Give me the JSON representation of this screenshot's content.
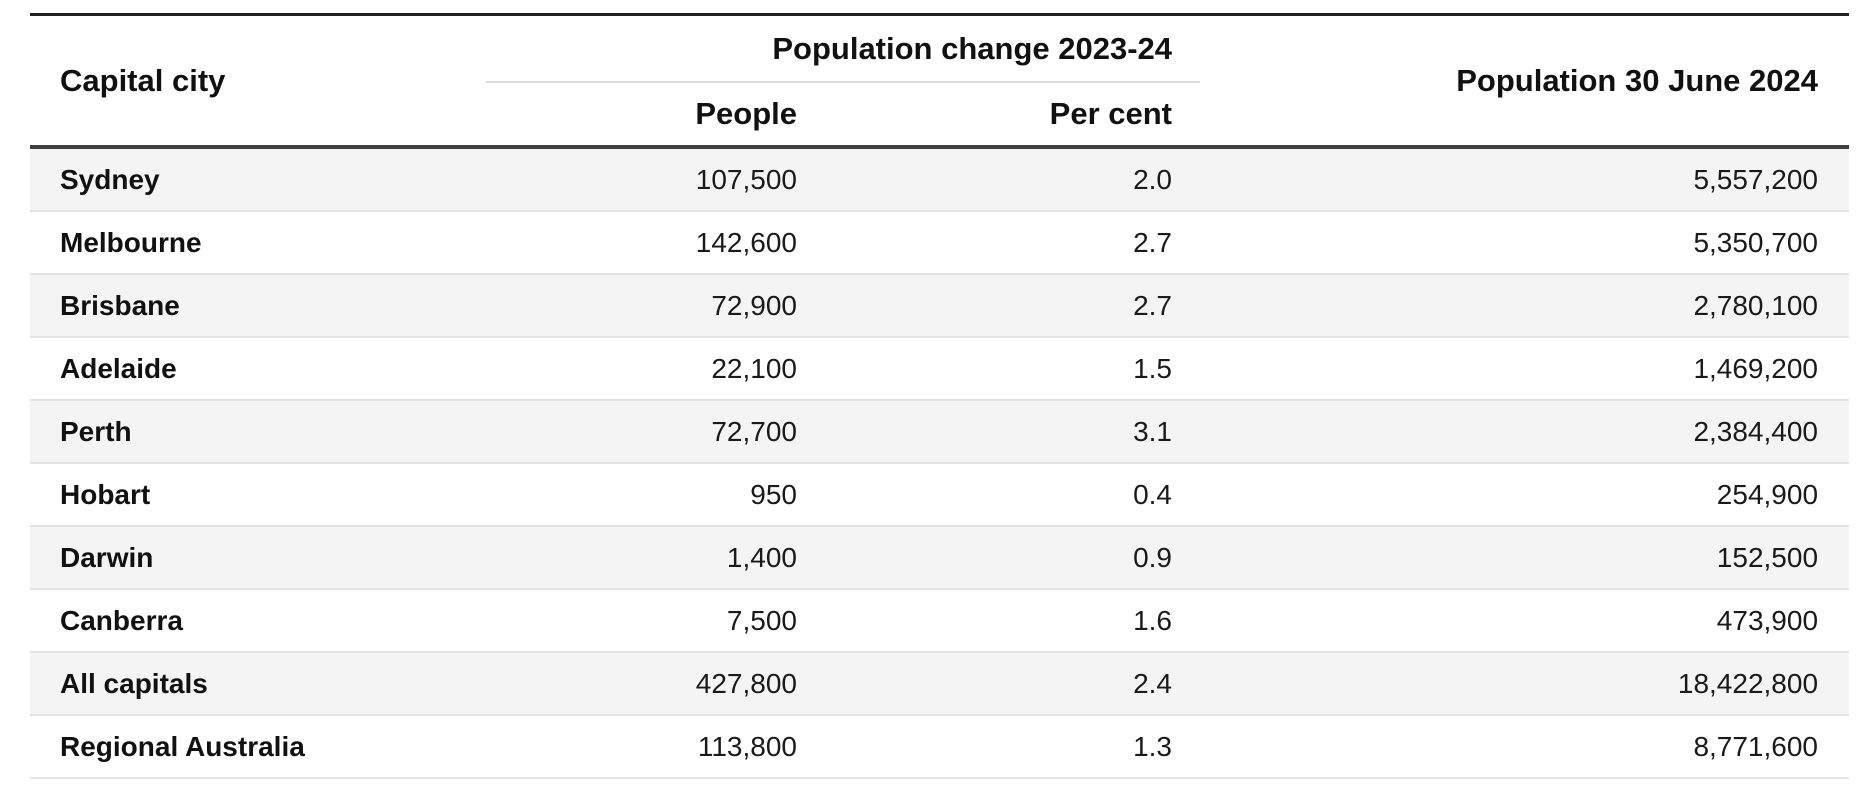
{
  "table": {
    "header": {
      "capital_city": "Capital city",
      "change_group": "Population change 2023-24",
      "people": "People",
      "per_cent": "Per cent",
      "population": "Population 30 June 2024"
    },
    "rows": [
      {
        "city": "Sydney",
        "people": "107,500",
        "per_cent": "2.0",
        "population": "5,557,200"
      },
      {
        "city": "Melbourne",
        "people": "142,600",
        "per_cent": "2.7",
        "population": "5,350,700"
      },
      {
        "city": "Brisbane",
        "people": "72,900",
        "per_cent": "2.7",
        "population": "2,780,100"
      },
      {
        "city": "Adelaide",
        "people": "22,100",
        "per_cent": "1.5",
        "population": "1,469,200"
      },
      {
        "city": "Perth",
        "people": "72,700",
        "per_cent": "3.1",
        "population": "2,384,400"
      },
      {
        "city": "Hobart",
        "people": "950",
        "per_cent": "0.4",
        "population": "254,900"
      },
      {
        "city": "Darwin",
        "people": "1,400",
        "per_cent": "0.9",
        "population": "152,500"
      },
      {
        "city": "Canberra",
        "people": "7,500",
        "per_cent": "1.6",
        "population": "473,900"
      },
      {
        "city": "All capitals",
        "people": "427,800",
        "per_cent": "2.4",
        "population": "18,422,800"
      },
      {
        "city": "Regional Australia",
        "people": "113,800",
        "per_cent": "1.3",
        "population": "8,771,600"
      }
    ]
  },
  "colors": {
    "top_border": "#212121",
    "header_rule": "#3f3f3f",
    "group_underline": "#dcdcdc",
    "row_separator": "#e3e3e3",
    "zebra_row": "#f4f4f4",
    "text": "#1a1a1a"
  },
  "chart_data": {
    "type": "table",
    "title": "",
    "columns": [
      "Capital city",
      "Population change 2023-24 - People",
      "Population change 2023-24 - Per cent",
      "Population 30 June 2024"
    ],
    "rows": [
      [
        "Sydney",
        107500,
        2.0,
        5557200
      ],
      [
        "Melbourne",
        142600,
        2.7,
        5350700
      ],
      [
        "Brisbane",
        72900,
        2.7,
        2780100
      ],
      [
        "Adelaide",
        22100,
        1.5,
        1469200
      ],
      [
        "Perth",
        72700,
        3.1,
        2384400
      ],
      [
        "Hobart",
        950,
        0.4,
        254900
      ],
      [
        "Darwin",
        1400,
        0.9,
        152500
      ],
      [
        "Canberra",
        7500,
        1.6,
        473900
      ],
      [
        "All capitals",
        427800,
        2.4,
        18422800
      ],
      [
        "Regional Australia",
        113800,
        1.3,
        8771600
      ]
    ]
  }
}
